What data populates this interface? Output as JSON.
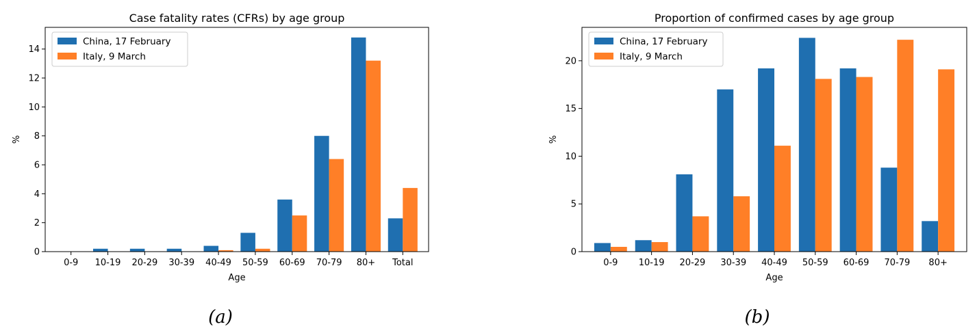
{
  "chart_data": [
    {
      "type": "bar",
      "title": "Case fatality rates (CFRs) by age group",
      "xlabel": "Age",
      "ylabel": "%",
      "categories": [
        "0-9",
        "10-19",
        "20-29",
        "30-39",
        "40-49",
        "50-59",
        "60-69",
        "70-79",
        "80+",
        "Total"
      ],
      "series": [
        {
          "name": "China, 17 February",
          "color": "#1f6fb0",
          "values": [
            0.0,
            0.2,
            0.2,
            0.2,
            0.4,
            1.3,
            3.6,
            8.0,
            14.8,
            2.3
          ]
        },
        {
          "name": "Italy, 9 March",
          "color": "#ff7f27",
          "values": [
            0.0,
            0.0,
            0.0,
            0.0,
            0.1,
            0.2,
            2.5,
            6.4,
            13.2,
            4.4
          ]
        }
      ],
      "ylim": [
        0,
        15.5
      ],
      "yticks": [
        0,
        2,
        4,
        6,
        8,
        10,
        12,
        14
      ],
      "legend_position": "upper-left",
      "grid": false,
      "caption": "(a)"
    },
    {
      "type": "bar",
      "title": "Proportion of confirmed cases by age group",
      "xlabel": "Age",
      "ylabel": "%",
      "categories": [
        "0-9",
        "10-19",
        "20-29",
        "30-39",
        "40-49",
        "50-59",
        "60-69",
        "70-79",
        "80+"
      ],
      "series": [
        {
          "name": "China, 17 February",
          "color": "#1f6fb0",
          "values": [
            0.9,
            1.2,
            8.1,
            17.0,
            19.2,
            22.4,
            19.2,
            8.8,
            3.2
          ]
        },
        {
          "name": "Italy, 9 March",
          "color": "#ff7f27",
          "values": [
            0.5,
            1.0,
            3.7,
            5.8,
            11.1,
            18.1,
            18.3,
            22.2,
            19.1
          ]
        }
      ],
      "ylim": [
        0,
        23.5
      ],
      "yticks": [
        0,
        5,
        10,
        15,
        20
      ],
      "legend_position": "upper-left",
      "grid": false,
      "caption": "(b)"
    }
  ]
}
